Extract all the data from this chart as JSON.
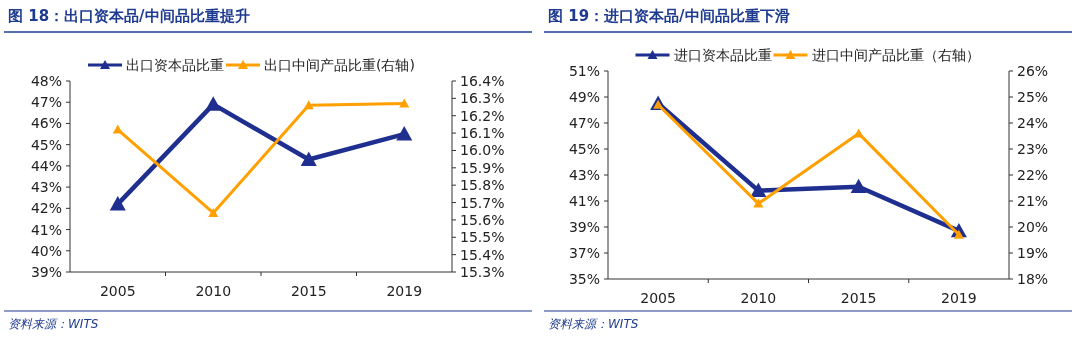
{
  "chart_data": [
    {
      "type": "line",
      "title": "图 18：出口资本品/中间品比重提升",
      "annotations": [
        "资料来源：WITS"
      ],
      "categories": [
        "2005",
        "2010",
        "2015",
        "2019"
      ],
      "series": [
        {
          "name": "出口资本品比重",
          "color": "#1f2f8f",
          "values": [
            42.2,
            46.9,
            44.3,
            45.5
          ]
        },
        {
          "name": "出口中间产品比重(右轴)",
          "color": "#ffa000",
          "values": [
            16.12,
            15.64,
            16.26,
            16.27
          ],
          "axis": "y2"
        }
      ],
      "ylim": [
        39,
        48
      ],
      "yticks": [
        {
          "value": 39,
          "label": "39%"
        },
        {
          "value": 40,
          "label": "40%"
        },
        {
          "value": 41,
          "label": "41%"
        },
        {
          "value": 42,
          "label": "42%"
        },
        {
          "value": 43,
          "label": "43%"
        },
        {
          "value": 44,
          "label": "44%"
        },
        {
          "value": 45,
          "label": "45%"
        },
        {
          "value": 46,
          "label": "46%"
        },
        {
          "value": 47,
          "label": "47%"
        },
        {
          "value": 48,
          "label": "48%"
        }
      ],
      "y2lim": [
        15.3,
        16.4
      ],
      "y2ticks": [
        {
          "value": 15.3,
          "label": "15.3%"
        },
        {
          "value": 15.4,
          "label": "15.4%"
        },
        {
          "value": 15.5,
          "label": "15.5%"
        },
        {
          "value": 15.6,
          "label": "15.6%"
        },
        {
          "value": 15.7,
          "label": "15.7%"
        },
        {
          "value": 15.8,
          "label": "15.8%"
        },
        {
          "value": 15.9,
          "label": "15.9%"
        },
        {
          "value": 16.0,
          "label": "16.0%"
        },
        {
          "value": 16.1,
          "label": "16.1%"
        },
        {
          "value": 16.2,
          "label": "16.2%"
        },
        {
          "value": 16.3,
          "label": "16.3%"
        },
        {
          "value": 16.4,
          "label": "16.4%"
        }
      ],
      "legend": "top",
      "marker": "triangle",
      "grid": false
    },
    {
      "type": "line",
      "title": "图 19：进口资本品/中间品比重下滑",
      "annotations": [
        "资料来源：WITS"
      ],
      "categories": [
        "2005",
        "2010",
        "2015",
        "2019"
      ],
      "series": [
        {
          "name": "进口资本品比重",
          "color": "#1f2f8f",
          "values": [
            48.5,
            41.8,
            42.1,
            38.7
          ]
        },
        {
          "name": "进口中间产品比重（右轴）",
          "color": "#ffa000",
          "values": [
            24.7,
            20.9,
            23.6,
            19.7
          ],
          "axis": "y2"
        }
      ],
      "ylim": [
        35,
        51
      ],
      "yticks": [
        {
          "value": 35,
          "label": "35%"
        },
        {
          "value": 37,
          "label": "37%"
        },
        {
          "value": 39,
          "label": "39%"
        },
        {
          "value": 41,
          "label": "41%"
        },
        {
          "value": 43,
          "label": "43%"
        },
        {
          "value": 45,
          "label": "45%"
        },
        {
          "value": 47,
          "label": "47%"
        },
        {
          "value": 49,
          "label": "49%"
        },
        {
          "value": 51,
          "label": "51%"
        }
      ],
      "y2lim": [
        18,
        26
      ],
      "y2ticks": [
        {
          "value": 18,
          "label": "18%"
        },
        {
          "value": 19,
          "label": "19%"
        },
        {
          "value": 20,
          "label": "20%"
        },
        {
          "value": 21,
          "label": "21%"
        },
        {
          "value": 22,
          "label": "22%"
        },
        {
          "value": 23,
          "label": "23%"
        },
        {
          "value": 24,
          "label": "24%"
        },
        {
          "value": 25,
          "label": "25%"
        },
        {
          "value": 26,
          "label": "26%"
        }
      ],
      "legend": "top",
      "marker": "triangle",
      "grid": false
    }
  ]
}
